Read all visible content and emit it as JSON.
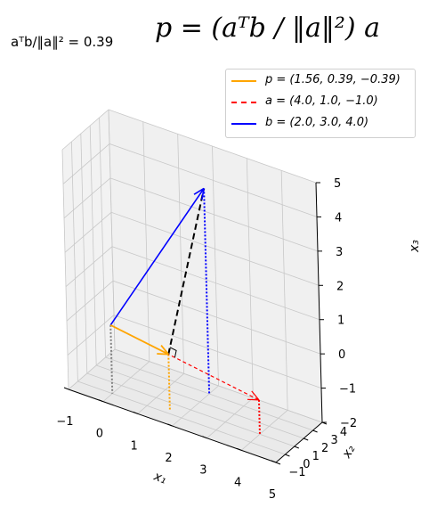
{
  "title": "p = (aᵀb / ‖a‖²) a",
  "coefficient_label": "aᵀb/‖a‖² = 0.39",
  "chart_data": {
    "type": "3d-vector",
    "grid": true,
    "legend_position": "top-right",
    "xlabel": "x₁",
    "ylabel": "x₂",
    "zlabel": "x₃",
    "xlim": [
      -1,
      5
    ],
    "ylim": [
      -1,
      4
    ],
    "zlim": [
      -2,
      5
    ],
    "x_ticks": [
      "−1",
      "0",
      "1",
      "2",
      "3",
      "4",
      "5"
    ],
    "y_ticks": [
      "−1",
      "0",
      "1",
      "2",
      "3",
      "4"
    ],
    "z_ticks": [
      "−2",
      "−1",
      "0",
      "1",
      "2",
      "3",
      "4",
      "5"
    ],
    "series": [
      {
        "name": "p = (1.56, 0.39, −0.39)",
        "color": "#ffa500",
        "style": "solid",
        "vector": [
          1.56,
          0.39,
          -0.39
        ]
      },
      {
        "name": "a = (4.0, 1.0, −1.0)",
        "color": "#ff0000",
        "style": "dashed",
        "vector": [
          4.0,
          1.0,
          -1.0
        ]
      },
      {
        "name": "b = (2.0, 3.0, 4.0)",
        "color": "#0000ff",
        "style": "solid",
        "vector": [
          2.0,
          3.0,
          4.0
        ]
      }
    ],
    "projection_line_color": "#000000"
  }
}
